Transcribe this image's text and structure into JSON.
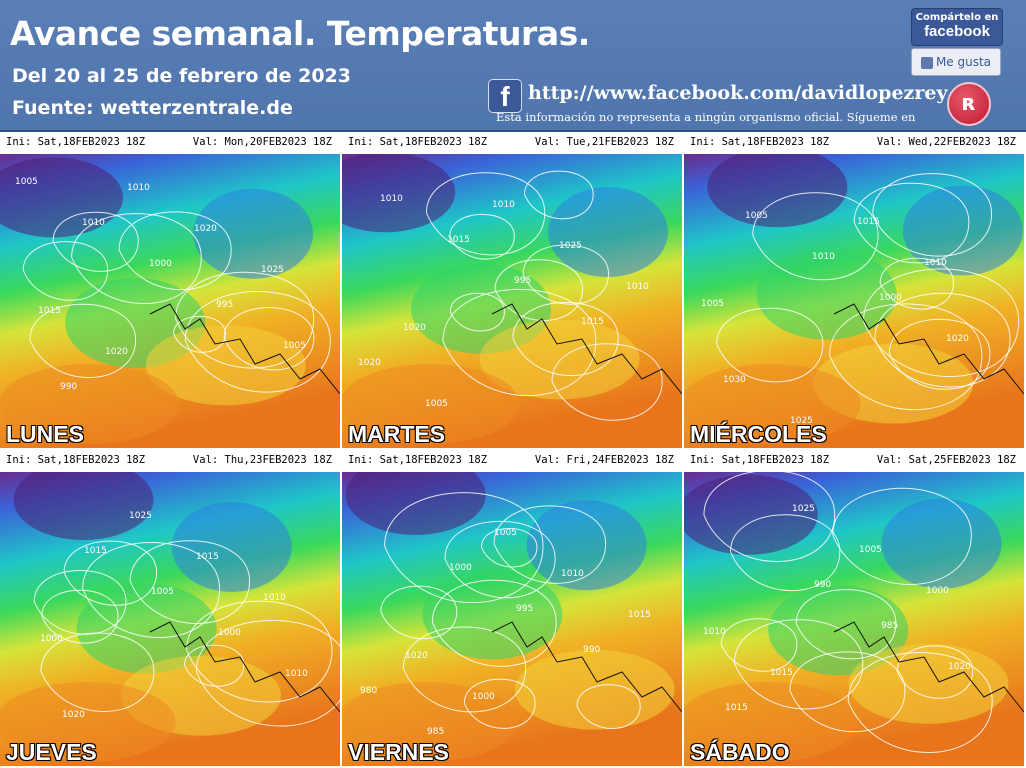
{
  "header": {
    "title": "Avance semanal. Temperaturas.",
    "subtitle": "Del 20 al 25 de febrero de 2023",
    "source": "Fuente: wetterzentrale.de",
    "facebook_url": "http://www.facebook.com/davidlopezrey",
    "disclaimer": "Esta información no representa a ningún organismo oficial. Sígueme en",
    "share_line1": "Compártelo en",
    "share_line2": "facebook",
    "like_label": "Me gusta",
    "facebook_icon": "facebook-f-icon",
    "brand_icon": "red-circle-logo-icon"
  },
  "colors": {
    "header_bg": "#5a7fb6",
    "facebook_blue": "#3b5998",
    "contour": "#ffffff"
  },
  "panels": [
    {
      "ini": "Ini: Sat,18FEB2023  18Z",
      "val": "Val: Mon,20FEB2023  18Z",
      "day": "LUNES"
    },
    {
      "ini": "Ini: Sat,18FEB2023  18Z",
      "val": "Val: Tue,21FEB2023  18Z",
      "day": "MARTES"
    },
    {
      "ini": "Ini: Sat,18FEB2023  18Z",
      "val": "Val: Wed,22FEB2023  18Z",
      "day": "MIÉRCOLES"
    },
    {
      "ini": "Ini: Sat,18FEB2023  18Z",
      "val": "Val: Thu,23FEB2023  18Z",
      "day": "JUEVES"
    },
    {
      "ini": "Ini: Sat,18FEB2023  18Z",
      "val": "Val: Fri,24FEB2023  18Z",
      "day": "VIERNES"
    },
    {
      "ini": "Ini: Sat,18FEB2023  18Z",
      "val": "Val: Sat,25FEB2023  18Z",
      "day": "SÁBADO"
    }
  ],
  "isobar_labels": [
    [
      "1005",
      "1010",
      "1000",
      "995",
      "1005",
      "990",
      "1010",
      "1020",
      "1025",
      "1015",
      "1020"
    ],
    [
      "1010",
      "1015",
      "995",
      "1015",
      "1020",
      "1005",
      "1010",
      "1025",
      "1010",
      "1020"
    ],
    [
      "1005",
      "1010",
      "1000",
      "1020",
      "1030",
      "1025",
      "1015",
      "1010",
      "1005"
    ],
    [
      "1015",
      "1005",
      "1000",
      "1010",
      "1020",
      "1025",
      "1015",
      "1010",
      "1000"
    ],
    [
      "1000",
      "995",
      "990",
      "980",
      "985",
      "1005",
      "1010",
      "1015",
      "1020",
      "1000"
    ],
    [
      "990",
      "985",
      "1020",
      "1015",
      "1025",
      "1005",
      "1000",
      "1010",
      "1015"
    ]
  ]
}
